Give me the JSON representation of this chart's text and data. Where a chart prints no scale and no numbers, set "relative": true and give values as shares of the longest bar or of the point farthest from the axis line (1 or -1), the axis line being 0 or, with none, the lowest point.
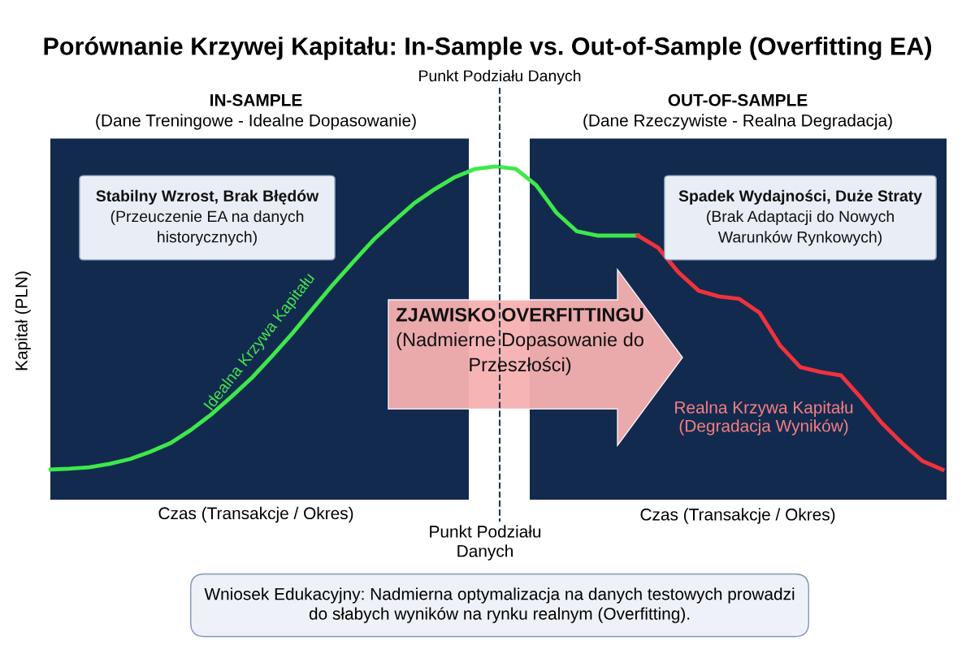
{
  "chart_data": {
    "type": "line",
    "relative": true,
    "title": "Porównanie Krzywej Kapitału: In-Sample vs. Out-of-Sample (Overfitting EA)",
    "xlabel": "Czas (Transakcje / Okres)",
    "ylabel": "Kapitał (PLN)",
    "categories": [
      null,
      null,
      null,
      null,
      null,
      null,
      null,
      null,
      null,
      null,
      null,
      null,
      null,
      null,
      null,
      null,
      null,
      null,
      null,
      null,
      null,
      null,
      null,
      null,
      null,
      null,
      null,
      null,
      null,
      null,
      null,
      null,
      null,
      null,
      null,
      null,
      null,
      null,
      null,
      null,
      null,
      null,
      null,
      null,
      null
    ],
    "series": [
      {
        "name": "Idealna Krzywa Kapitału",
        "color": "#3ee84a",
        "values": [
          0,
          0.003,
          0.008,
          0.019,
          0.035,
          0.059,
          0.088,
          0.131,
          0.182,
          0.241,
          0.303,
          0.375,
          0.45,
          0.531,
          0.611,
          0.686,
          0.759,
          0.82,
          0.879,
          0.925,
          0.965,
          0.992,
          1,
          0.992,
          0.938,
          0.847,
          0.786,
          0.772,
          0.772,
          0.772,
          null,
          null,
          null,
          null,
          null,
          null,
          null,
          null,
          null,
          null,
          null,
          null,
          null,
          null,
          null
        ]
      },
      {
        "name": "Realna Krzywa Kapitału\n(Degradacja Wyników)",
        "color": "#f0323c",
        "values": [
          null,
          null,
          null,
          null,
          null,
          null,
          null,
          null,
          null,
          null,
          null,
          null,
          null,
          null,
          null,
          null,
          null,
          null,
          null,
          null,
          null,
          null,
          null,
          null,
          null,
          null,
          null,
          null,
          null,
          0.772,
          0.732,
          0.651,
          0.59,
          0.571,
          0.563,
          0.517,
          0.41,
          0.338,
          0.322,
          0.311,
          0.236,
          0.155,
          0.088,
          0.029,
          0
        ]
      }
    ],
    "annotations": [
      "Punkt Podziału Danych",
      "IN-SAMPLE",
      "(Dane Treningowe - Idealne Dopasowanie)",
      "OUT-OF-SAMPLE",
      "(Dane Rzeczywiste - Realna Degradacja)",
      "Stabilny Wzrost, Brak Błędów\n(Przeuczenie EA na danych\nhistorycznych)",
      "Spadek Wydajności, Duże Straty\n(Brak Adaptacji do Nowych\nWarunków Rynkowych)",
      "ZJAWISKO OVERFITTINGU\n(Nadmierne Dopasowanie do\nPrzeszłości)",
      "Czas (Transakcje / Okres)",
      "Punkt Podziału\nDanych",
      "Wniosek Edukacyjny: Nadmierna optymalizacja na danych testowych prowadzi\ndo słabych wyników na rynku realnym (Overfitting)."
    ],
    "grid": false,
    "legend": false,
    "marker": "none",
    "line_style": "solid"
  }
}
